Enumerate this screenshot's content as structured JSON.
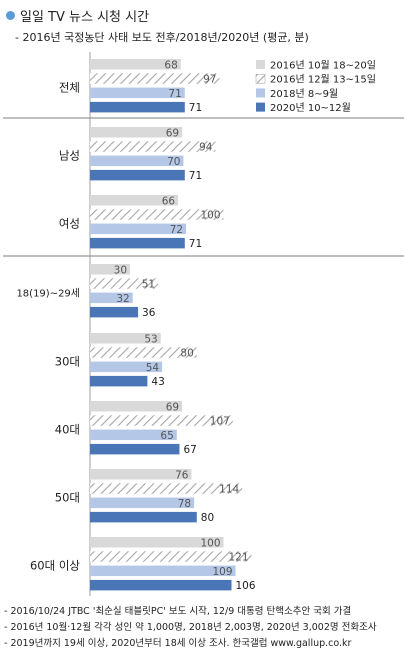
{
  "header": {
    "title": "일일 TV 뉴스 시청 시간",
    "subtitle": "- 2016년 국정농단 사태 보도 전후/2018년/2020년 (평균, 분)"
  },
  "chart_data": {
    "type": "bar",
    "orientation": "horizontal",
    "categories": [
      "전체",
      "남성",
      "여성",
      "18(19)~29세",
      "30대",
      "40대",
      "50대",
      "60대 이상"
    ],
    "series": [
      {
        "name": "2016년 10월 18~20일",
        "values": [
          68,
          69,
          66,
          30,
          53,
          69,
          76,
          100
        ],
        "color": "#d9d9d9",
        "pattern": "solid"
      },
      {
        "name": "2016년 12월 13~15일",
        "values": [
          97,
          94,
          100,
          51,
          80,
          107,
          114,
          121
        ],
        "color": "#bfbfbf",
        "pattern": "hatched"
      },
      {
        "name": "2018년 8~9월",
        "values": [
          71,
          70,
          72,
          32,
          54,
          65,
          78,
          109
        ],
        "color": "#b4c7e7",
        "pattern": "solid"
      },
      {
        "name": "2020년 10~12월",
        "values": [
          71,
          71,
          71,
          36,
          43,
          67,
          80,
          106
        ],
        "color": "#4a76b8",
        "pattern": "solid"
      }
    ],
    "legend_position": "top-right",
    "grid": false
  },
  "footnotes": [
    "- 2016/10/24 JTBC '최순실 태블릿PC' 보도 시작, 12/9 대통령 탄핵소추안 국회 가결",
    "- 2016년 10월·12월 각각 성인 약 1,000명, 2018년 2,003명, 2020년 3,002명 전화조사",
    "- 2019년까지 19세 이상, 2020년부터 18세 이상 조사. 한국갤럽 www.gallup.co.kr"
  ]
}
